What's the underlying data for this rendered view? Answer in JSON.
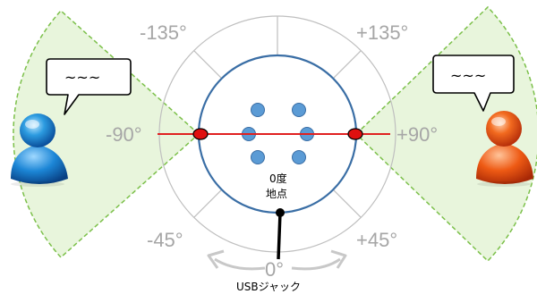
{
  "angles": {
    "minus135": "-135°",
    "plus135": "+135°",
    "minus90": "-90°",
    "plus90": "+90°",
    "minus45": "-45°",
    "plus45": "+45°",
    "zero": "0°"
  },
  "origin_label": {
    "line1": "0度",
    "line2": "地点"
  },
  "usb_label": "USBジャック",
  "speech": {
    "left": "~~~",
    "right": "~~~"
  },
  "colors": {
    "sector_fill": "#e8f5dc",
    "sector_stroke": "#7cc04a",
    "device_stroke": "#3a6ea5",
    "mic_dot": "#5b9bd5",
    "beam_line": "#e02020",
    "ring": "#bfbfbf"
  },
  "icons": {
    "left_user": "blue-user-icon",
    "right_user": "orange-user-icon"
  }
}
